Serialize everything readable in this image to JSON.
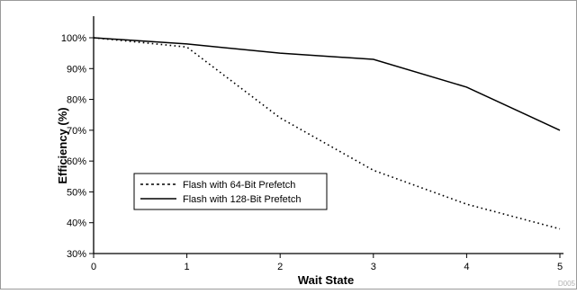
{
  "chart_data": {
    "type": "line",
    "title": "",
    "xlabel": "Wait State",
    "ylabel": "Efficiency (%)",
    "x": [
      0,
      1,
      2,
      3,
      4,
      5
    ],
    "xlim": [
      0,
      5
    ],
    "ylim": [
      30,
      100
    ],
    "x_ticks": [
      "0",
      "1",
      "2",
      "3",
      "4",
      "5"
    ],
    "y_ticks": [
      "30%",
      "40%",
      "50%",
      "60%",
      "70%",
      "80%",
      "90%",
      "100%"
    ],
    "grid": false,
    "legend_position": "lower-left",
    "series": [
      {
        "name": "Flash with 64-Bit Prefetch",
        "style": "dotted",
        "color": "#000000",
        "values": [
          100,
          97,
          74,
          57,
          46,
          38
        ]
      },
      {
        "name": "Flash with 128-Bit Prefetch",
        "style": "solid",
        "color": "#000000",
        "values": [
          100,
          98,
          95,
          93,
          84,
          70
        ]
      }
    ],
    "figure_id": "D005"
  }
}
